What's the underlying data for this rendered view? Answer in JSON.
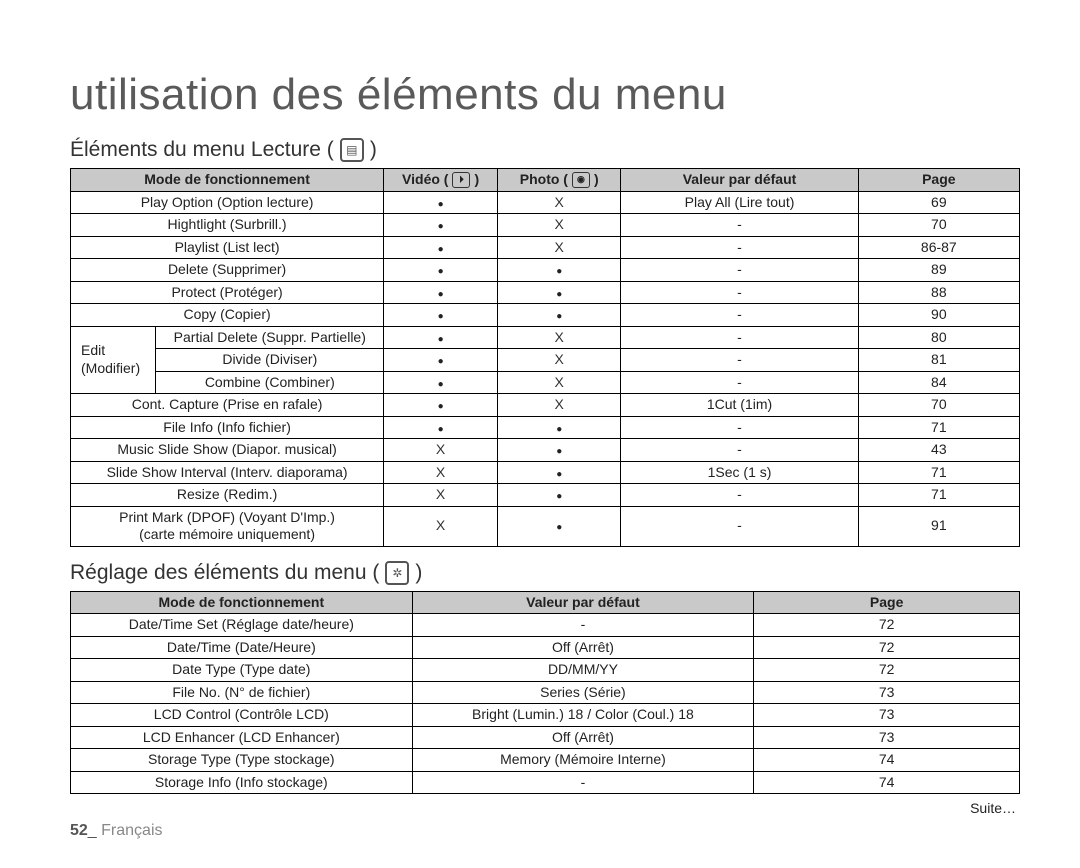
{
  "title": "utilisation des éléments du menu",
  "section1": {
    "heading": "Éléments du menu Lecture (",
    "headers": [
      "Mode de fonctionnement",
      "Vidéo (",
      "Photo (",
      "Valeur par défaut",
      "Page"
    ],
    "editLabel": "Edit (Modifier)",
    "rows": [
      {
        "m": "Play Option (Option lecture)",
        "v": "dot",
        "p": "x",
        "d": "Play All (Lire tout)",
        "pg": "69"
      },
      {
        "m": "Hightlight (Surbrill.)",
        "v": "dot",
        "p": "x",
        "d": "-",
        "pg": "70"
      },
      {
        "m": "Playlist (List lect)",
        "v": "dot",
        "p": "x",
        "d": "-",
        "pg": "86-87"
      },
      {
        "m": "Delete (Supprimer)",
        "v": "dot",
        "p": "dot",
        "d": "-",
        "pg": "89"
      },
      {
        "m": "Protect (Protéger)",
        "v": "dot",
        "p": "dot",
        "d": "-",
        "pg": "88"
      },
      {
        "m": "Copy (Copier)",
        "v": "dot",
        "p": "dot",
        "d": "-",
        "pg": "90"
      }
    ],
    "editRows": [
      {
        "m": "Partial Delete (Suppr. Partielle)",
        "v": "dot",
        "p": "x",
        "d": "-",
        "pg": "80"
      },
      {
        "m": "Divide (Diviser)",
        "v": "dot",
        "p": "x",
        "d": "-",
        "pg": "81"
      },
      {
        "m": "Combine (Combiner)",
        "v": "dot",
        "p": "x",
        "d": "-",
        "pg": "84"
      }
    ],
    "rows2": [
      {
        "m": "Cont. Capture (Prise en rafale)",
        "v": "dot",
        "p": "x",
        "d": "1Cut (1im)",
        "pg": "70"
      },
      {
        "m": "File Info (Info fichier)",
        "v": "dot",
        "p": "dot",
        "d": "-",
        "pg": "71"
      },
      {
        "m": "Music Slide Show (Diapor. musical)",
        "v": "x",
        "p": "dot",
        "d": "-",
        "pg": "43"
      },
      {
        "m": "Slide Show Interval (Interv. diaporama)",
        "v": "x",
        "p": "dot",
        "d": "1Sec (1 s)",
        "pg": "71"
      },
      {
        "m": "Resize (Redim.)",
        "v": "x",
        "p": "dot",
        "d": "-",
        "pg": "71"
      }
    ],
    "lastRow": {
      "m1": "Print Mark (DPOF) (Voyant D'Imp.)",
      "m2": "(carte mémoire uniquement)",
      "v": "x",
      "p": "dot",
      "d": "-",
      "pg": "91"
    }
  },
  "section2": {
    "heading": "Réglage des éléments du menu (",
    "headers": [
      "Mode de  fonctionnement",
      "Valeur par défaut",
      "Page"
    ],
    "rows": [
      {
        "m": "Date/Time Set (Réglage date/heure)",
        "d": "-",
        "pg": "72"
      },
      {
        "m": "Date/Time (Date/Heure)",
        "d": "Off (Arrêt)",
        "pg": "72"
      },
      {
        "m": "Date Type (Type date)",
        "d": "DD/MM/YY",
        "pg": "72"
      },
      {
        "m": "File No. (N° de fichier)",
        "d": "Series (Série)",
        "pg": "73"
      },
      {
        "m": "LCD Control (Contrôle LCD)",
        "d": "Bright (Lumin.) 18 / Color (Coul.) 18",
        "pg": "73"
      },
      {
        "m": "LCD Enhancer (LCD Enhancer)",
        "d": "Off (Arrêt)",
        "pg": "73"
      },
      {
        "m": "Storage Type (Type stockage)",
        "d": "Memory (Mémoire Interne)",
        "pg": "74"
      },
      {
        "m": "Storage Info (Info stockage)",
        "d": "-",
        "pg": "74"
      }
    ]
  },
  "suite": "Suite…",
  "pageNum": "52",
  "lang": "Français"
}
